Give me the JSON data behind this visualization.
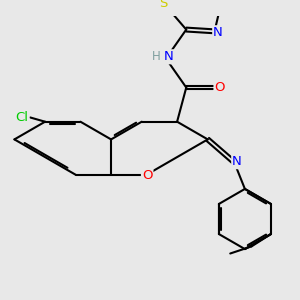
{
  "background_color": "#e8e8e8",
  "bond_color": "#000000",
  "bond_width": 1.5,
  "atom_colors": {
    "N": "#0000ff",
    "O": "#ff0000",
    "S": "#cccc00",
    "Cl": "#00cc00",
    "H": "#7f9f9f"
  },
  "font_size": 9.5
}
